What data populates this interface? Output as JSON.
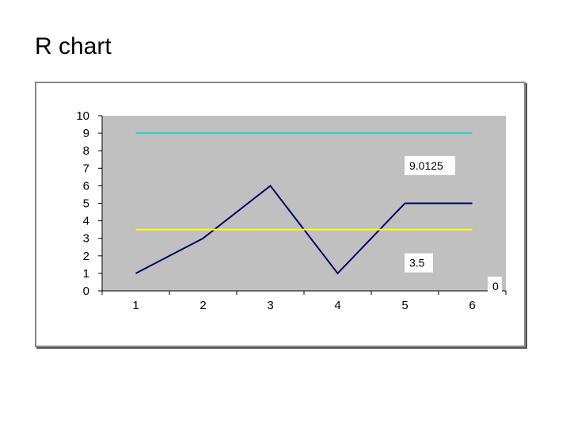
{
  "page": {
    "title": "R chart"
  },
  "chart_data": {
    "type": "line",
    "title": "",
    "xlabel": "",
    "ylabel": "",
    "x": [
      1,
      2,
      3,
      4,
      5,
      6
    ],
    "ylim": [
      0,
      10
    ],
    "yticks": [
      0,
      1,
      2,
      3,
      4,
      5,
      6,
      7,
      8,
      9,
      10
    ],
    "xticks": [
      "1",
      "2",
      "3",
      "4",
      "5",
      "6"
    ],
    "grid": false,
    "plot_background": "#c0c0c0",
    "series": [
      {
        "kind": "line",
        "values": [
          1,
          3,
          6,
          1,
          5,
          5
        ],
        "color": "#000066"
      },
      {
        "kind": "control-limit",
        "values": [
          9.0125,
          9.0125,
          9.0125,
          9.0125,
          9.0125,
          9.0125
        ],
        "color": "#33cccc"
      },
      {
        "kind": "center-line",
        "values": [
          3.5,
          3.5,
          3.5,
          3.5,
          3.5,
          3.5
        ],
        "color": "#ffff00"
      }
    ],
    "annotations": [
      {
        "text": "9.0125",
        "value": 9.0125
      },
      {
        "text": "3.5",
        "value": 3.5
      },
      {
        "text": "0",
        "value": 0
      }
    ]
  }
}
